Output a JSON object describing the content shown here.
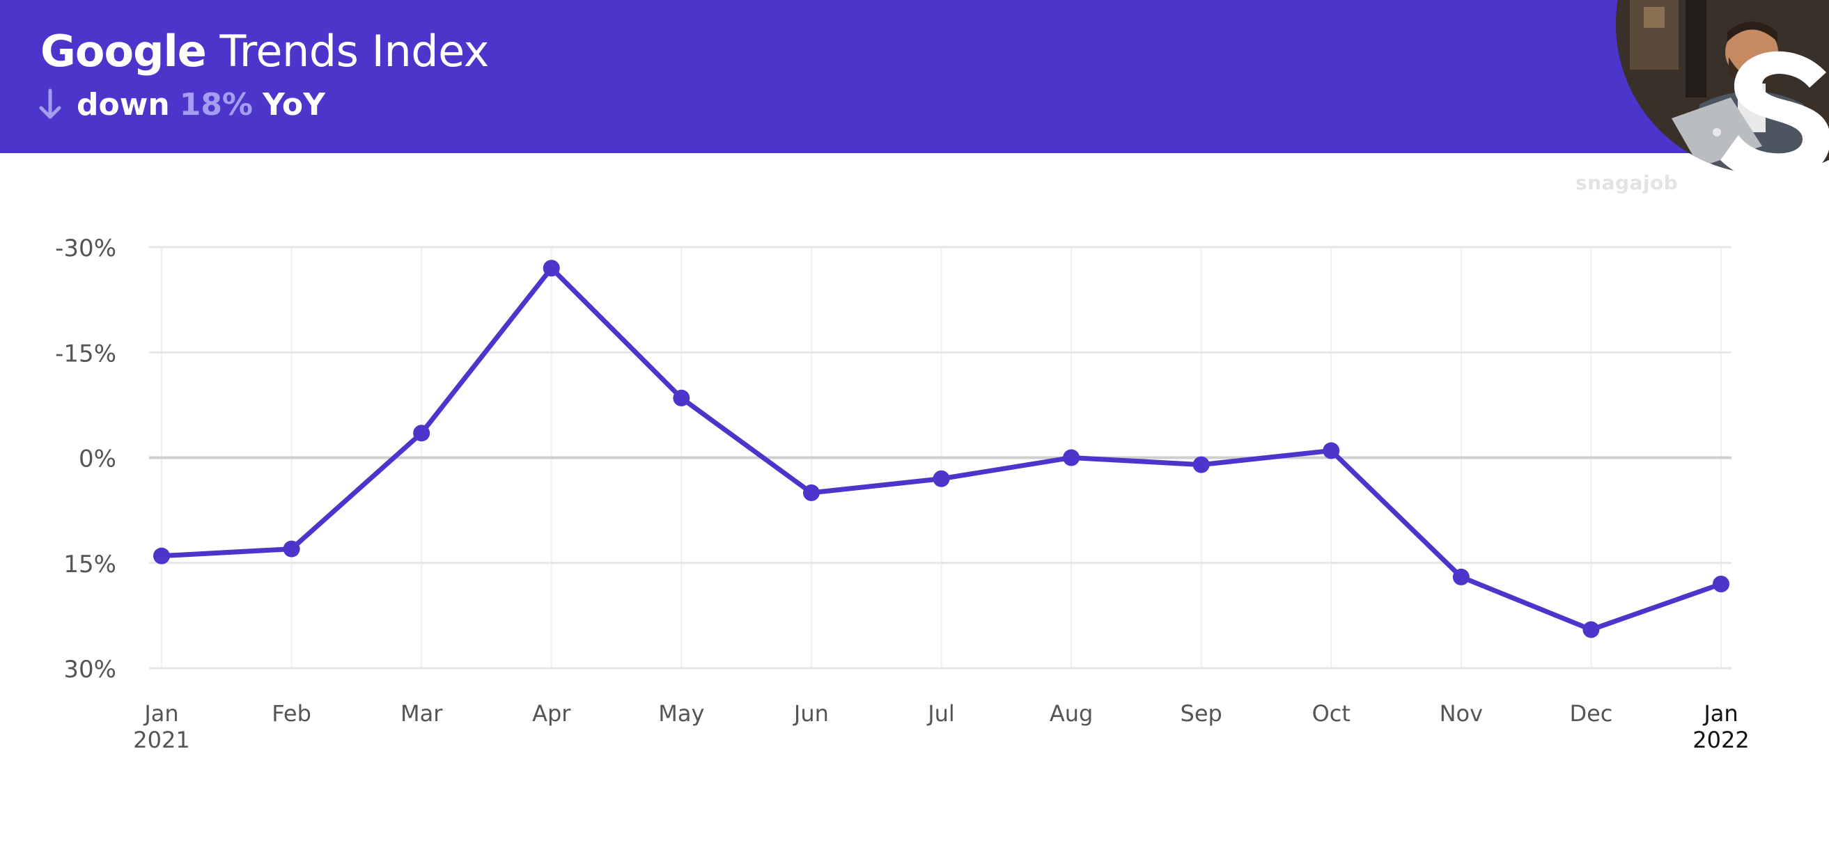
{
  "header": {
    "title_brand": "Google",
    "title_rest": "Trends Index",
    "trend_direction": "down",
    "trend_value": "18%",
    "trend_suffix": "YoY",
    "brand_wordmark": "snagajob",
    "icons": {
      "trend": "arrow-down-icon",
      "logo": "snagajob-s-logo"
    },
    "colors": {
      "banner": "#4b35cb",
      "accent": "#a79df0",
      "text": "#ffffff"
    }
  },
  "chart_data": {
    "type": "line",
    "title": "",
    "xlabel": "",
    "ylabel": "",
    "categories": [
      "Jan 2021",
      "Feb",
      "Mar",
      "Apr",
      "May",
      "Jun",
      "Jul",
      "Aug",
      "Sep",
      "Oct",
      "Nov",
      "Dec",
      "Jan 2022"
    ],
    "x_tick_labels": [
      [
        "Jan",
        "2021"
      ],
      [
        "Feb"
      ],
      [
        "Mar"
      ],
      [
        "Apr"
      ],
      [
        "May"
      ],
      [
        "Jun"
      ],
      [
        "Jul"
      ],
      [
        "Aug"
      ],
      [
        "Sep"
      ],
      [
        "Oct"
      ],
      [
        "Nov"
      ],
      [
        "Dec"
      ],
      [
        "Jan",
        "2022"
      ]
    ],
    "y_tick_labels": [
      "-30%",
      "-15%",
      "0%",
      "15%",
      "30%"
    ],
    "y_ticks": [
      -30,
      -15,
      0,
      15,
      30
    ],
    "ylim": [
      -30,
      30
    ],
    "y_axis_inverted": true,
    "series": [
      {
        "values": [
          14,
          13,
          -3.5,
          -27,
          -8.5,
          5,
          3,
          0,
          1,
          -1,
          17,
          24.5,
          18
        ]
      }
    ],
    "grid": true,
    "colors": {
      "line": "#4b35cb",
      "grid": "#e6e6e6",
      "zero_line": "#cfcfcf",
      "tick_text": "#555555",
      "last_tick_text": "#111111"
    }
  }
}
